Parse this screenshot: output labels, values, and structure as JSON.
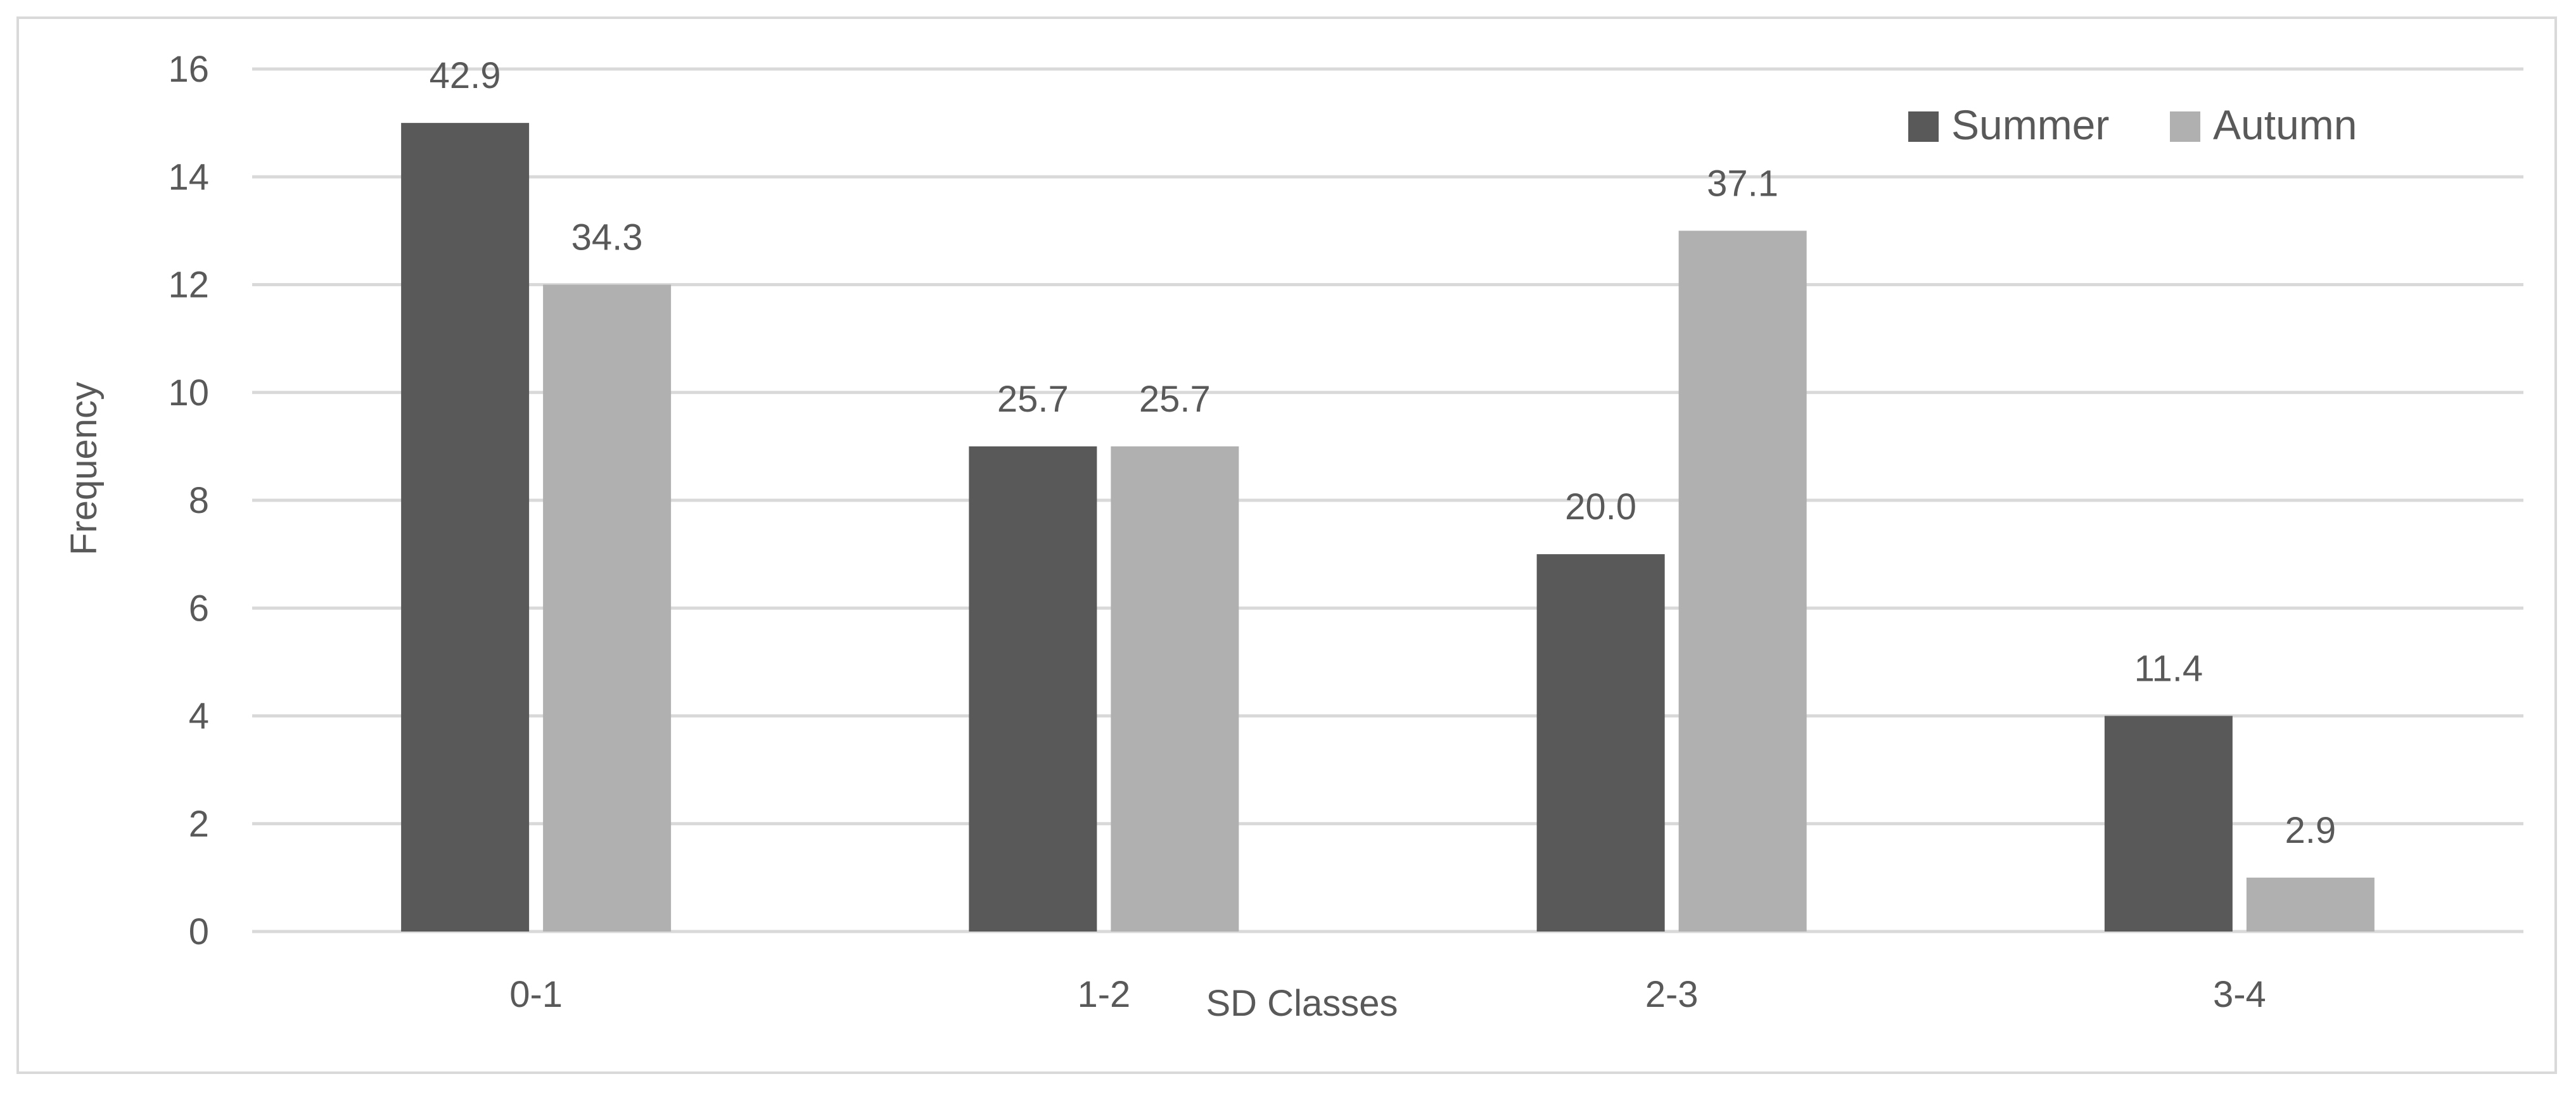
{
  "chart_data": {
    "type": "bar",
    "title": "",
    "xlabel": "SD Classes",
    "ylabel": "Frequency",
    "categories": [
      "0-1",
      "1-2",
      "2-3",
      "3-4"
    ],
    "series": [
      {
        "name": "Summer",
        "values": [
          15,
          9,
          7,
          4
        ],
        "labels": [
          "42.9",
          "25.7",
          "20.0",
          "11.4"
        ],
        "color": "#595959"
      },
      {
        "name": "Autumn",
        "values": [
          12,
          9,
          13,
          1
        ],
        "labels": [
          "34.3",
          "25.7",
          "37.1",
          "2.9"
        ],
        "color": "#b0b0b0"
      }
    ],
    "ylim": [
      0,
      16
    ],
    "yticks": [
      0,
      2,
      4,
      6,
      8,
      10,
      12,
      14,
      16
    ],
    "grid": true,
    "legend_position": "top-right"
  }
}
